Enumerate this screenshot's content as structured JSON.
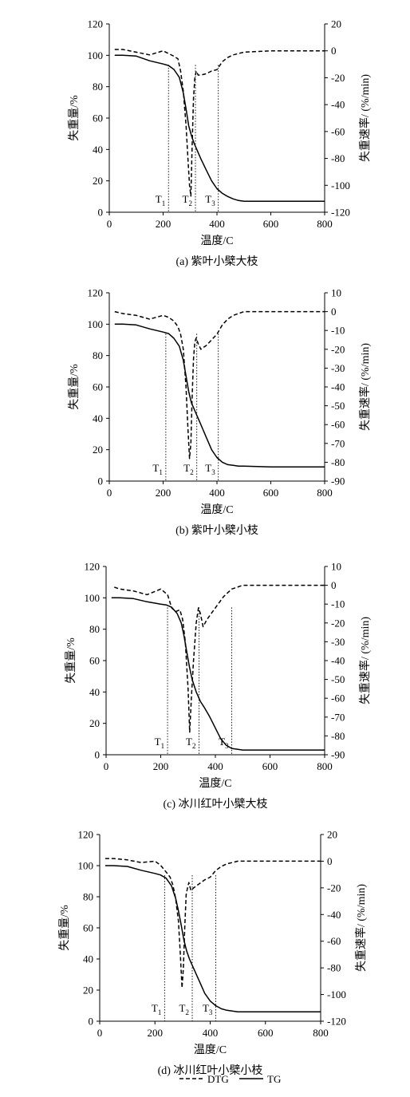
{
  "legend": {
    "dtg_label": "DTG",
    "tg_label": "TG"
  },
  "chart_data": [
    {
      "type": "line",
      "caption": "(a) 紫叶小檗大枝",
      "xlabel": "温度/C",
      "ylabel_left": "失重量/%",
      "ylabel_right": "失重速率/ (%/min)",
      "xlim": [
        0,
        800
      ],
      "xticks": [
        0,
        200,
        400,
        600,
        800
      ],
      "ylim_left": [
        0,
        120
      ],
      "yticks_left": [
        0,
        20,
        40,
        60,
        80,
        100,
        120
      ],
      "ylim_right": [
        -120,
        20
      ],
      "yticks_right": [
        -120,
        -100,
        -80,
        -60,
        -40,
        -20,
        0,
        20
      ],
      "t_markers": [
        {
          "label": "T",
          "sub": "1",
          "x": 220
        },
        {
          "label": "T",
          "sub": "2",
          "x": 320
        },
        {
          "label": "T",
          "sub": "3",
          "x": 405
        }
      ],
      "series": [
        {
          "name": "TG",
          "axis": "left",
          "style": "solid",
          "x": [
            20,
            50,
            100,
            150,
            200,
            220,
            240,
            260,
            275,
            285,
            295,
            305,
            315,
            325,
            340,
            360,
            380,
            400,
            420,
            440,
            460,
            480,
            500,
            600,
            700,
            800
          ],
          "y": [
            100,
            100,
            99.5,
            96.5,
            94.5,
            93.5,
            91,
            86,
            76,
            66,
            55,
            49,
            44,
            40,
            34,
            27,
            20,
            15,
            12,
            10,
            8.5,
            7.5,
            7,
            7,
            7,
            7
          ]
        },
        {
          "name": "DTG",
          "axis": "right",
          "style": "dashed",
          "x": [
            20,
            50,
            100,
            150,
            200,
            220,
            240,
            255,
            265,
            275,
            285,
            292,
            298,
            303,
            308,
            313,
            318,
            323,
            330,
            340,
            360,
            380,
            400,
            420,
            440,
            460,
            480,
            500,
            600,
            700,
            800
          ],
          "y": [
            1,
            1,
            -1,
            -3,
            0,
            -2,
            -4,
            -6,
            -15,
            -30,
            -55,
            -80,
            -100,
            -108,
            -70,
            -35,
            -20,
            -15,
            -18,
            -18,
            -17,
            -15,
            -14,
            -8,
            -5,
            -3,
            -2,
            -1,
            0,
            0,
            0
          ]
        }
      ]
    },
    {
      "type": "line",
      "caption": "(b) 紫叶小檗小枝",
      "xlabel": "温度/C",
      "ylabel_left": "失重量/%",
      "ylabel_right": "失重速率/ (%/min)",
      "xlim": [
        0,
        800
      ],
      "xticks": [
        0,
        200,
        400,
        600,
        800
      ],
      "ylim_left": [
        0,
        120
      ],
      "yticks_left": [
        0,
        20,
        40,
        60,
        80,
        100,
        120
      ],
      "ylim_right": [
        -90,
        10
      ],
      "yticks_right": [
        -90,
        -80,
        -70,
        -60,
        -50,
        -40,
        -30,
        -20,
        -10,
        0,
        10
      ],
      "t_markers": [
        {
          "label": "T",
          "sub": "1",
          "x": 210
        },
        {
          "label": "T",
          "sub": "2",
          "x": 325
        },
        {
          "label": "T",
          "sub": "3",
          "x": 405
        }
      ],
      "series": [
        {
          "name": "TG",
          "axis": "left",
          "style": "solid",
          "x": [
            20,
            50,
            100,
            150,
            200,
            220,
            240,
            260,
            275,
            285,
            295,
            305,
            315,
            325,
            340,
            360,
            380,
            400,
            420,
            440,
            460,
            480,
            500,
            600,
            700,
            800
          ],
          "y": [
            100,
            100,
            99.5,
            97,
            95,
            94,
            91,
            86,
            77,
            67,
            57,
            50,
            46,
            42,
            36,
            28,
            20,
            15,
            12,
            10.5,
            10,
            9.5,
            9.5,
            9,
            9,
            9
          ]
        },
        {
          "name": "DTG",
          "axis": "right",
          "style": "dashed",
          "x": [
            20,
            50,
            100,
            150,
            200,
            220,
            240,
            255,
            265,
            275,
            285,
            292,
            298,
            303,
            308,
            313,
            318,
            323,
            330,
            340,
            360,
            380,
            400,
            420,
            440,
            460,
            480,
            500,
            600,
            700,
            800
          ],
          "y": [
            0,
            -1,
            -2,
            -4,
            -2,
            -3,
            -5,
            -8,
            -12,
            -20,
            -40,
            -62,
            -78,
            -70,
            -45,
            -25,
            -16,
            -14,
            -17,
            -20,
            -18,
            -15,
            -12,
            -7,
            -4,
            -2,
            -1,
            0,
            0,
            0,
            0
          ]
        }
      ]
    },
    {
      "type": "line",
      "caption": "(c) 冰川红叶小檗大枝",
      "xlabel": "温度/C",
      "ylabel_left": "失重量/%",
      "ylabel_right": "失重速率/ (%/min)",
      "xlim": [
        0,
        800
      ],
      "xticks": [
        0,
        200,
        400,
        600,
        800
      ],
      "ylim_left": [
        0,
        120
      ],
      "yticks_left": [
        0,
        20,
        40,
        60,
        80,
        100,
        120
      ],
      "ylim_right": [
        -90,
        10
      ],
      "yticks_right": [
        -90,
        -80,
        -70,
        -60,
        -50,
        -40,
        -30,
        -20,
        -10,
        0,
        10
      ],
      "t_markers": [
        {
          "label": "T",
          "sub": "1",
          "x": 225
        },
        {
          "label": "T",
          "sub": "2",
          "x": 340
        },
        {
          "label": "T",
          "sub": "3",
          "x": 460
        }
      ],
      "series": [
        {
          "name": "TG",
          "axis": "left",
          "style": "solid",
          "x": [
            20,
            50,
            100,
            150,
            200,
            220,
            240,
            260,
            275,
            285,
            295,
            305,
            315,
            330,
            345,
            360,
            380,
            400,
            420,
            440,
            460,
            480,
            500,
            600,
            700,
            800
          ],
          "y": [
            100,
            100,
            99.5,
            97.5,
            96,
            95.5,
            94,
            90,
            84,
            76,
            66,
            56,
            48,
            40,
            34,
            30,
            24,
            17,
            10,
            6,
            4,
            3.5,
            3,
            3,
            3,
            3
          ]
        },
        {
          "name": "DTG",
          "axis": "right",
          "style": "dashed",
          "x": [
            30,
            50,
            100,
            150,
            200,
            225,
            240,
            255,
            270,
            280,
            290,
            300,
            306,
            312,
            320,
            330,
            338,
            345,
            355,
            370,
            390,
            410,
            430,
            460,
            480,
            500,
            600,
            700,
            800
          ],
          "y": [
            -1,
            -2,
            -3,
            -5,
            -2,
            -5,
            -12,
            -14,
            -13,
            -18,
            -30,
            -55,
            -78,
            -60,
            -40,
            -20,
            -12,
            -15,
            -22,
            -18,
            -14,
            -10,
            -6,
            -2,
            -1,
            0,
            0,
            0,
            0
          ]
        }
      ]
    },
    {
      "type": "line",
      "caption": "(d) 冰川红叶小檗小枝",
      "xlabel": "温度/C",
      "ylabel_left": "失重量/%",
      "ylabel_right": "失重速率/ (%/min)",
      "xlim": [
        0,
        800
      ],
      "xticks": [
        0,
        200,
        400,
        600,
        800
      ],
      "ylim_left": [
        0,
        120
      ],
      "yticks_left": [
        0,
        20,
        40,
        60,
        80,
        100,
        120
      ],
      "ylim_right": [
        -120,
        20
      ],
      "yticks_right": [
        -120,
        -100,
        -80,
        -60,
        -40,
        -20,
        0,
        20
      ],
      "t_markers": [
        {
          "label": "T",
          "sub": "1",
          "x": 235
        },
        {
          "label": "T",
          "sub": "2",
          "x": 335
        },
        {
          "label": "T",
          "sub": "3",
          "x": 420
        }
      ],
      "series": [
        {
          "name": "TG",
          "axis": "left",
          "style": "solid",
          "x": [
            20,
            50,
            100,
            150,
            200,
            220,
            240,
            260,
            275,
            285,
            295,
            305,
            315,
            325,
            340,
            360,
            380,
            400,
            420,
            440,
            460,
            480,
            500,
            600,
            700,
            800
          ],
          "y": [
            100,
            100,
            99.5,
            97,
            95,
            94,
            92,
            87,
            79,
            71,
            62,
            52,
            45,
            40,
            34,
            26,
            18,
            13,
            10,
            8,
            7,
            6.5,
            6,
            6,
            6,
            6
          ]
        },
        {
          "name": "DTG",
          "axis": "right",
          "style": "dashed",
          "x": [
            20,
            50,
            100,
            150,
            200,
            220,
            240,
            255,
            265,
            275,
            285,
            292,
            298,
            303,
            308,
            313,
            318,
            323,
            330,
            340,
            360,
            380,
            400,
            420,
            440,
            460,
            480,
            500,
            600,
            700,
            800
          ],
          "y": [
            2,
            2,
            1,
            -1,
            0,
            -3,
            -8,
            -12,
            -18,
            -28,
            -45,
            -70,
            -95,
            -80,
            -50,
            -25,
            -20,
            -16,
            -22,
            -20,
            -17,
            -14,
            -12,
            -7,
            -4,
            -2,
            -1,
            0,
            0,
            0,
            0
          ]
        }
      ]
    }
  ]
}
